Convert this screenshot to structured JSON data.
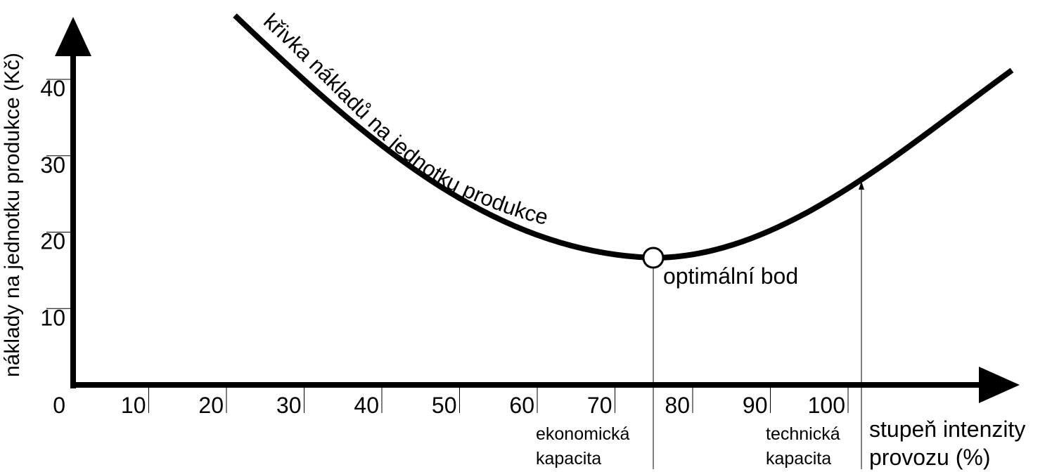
{
  "chart_data": {
    "type": "line",
    "title": "",
    "xlabel": [
      "stupeň intenzity",
      "provozu (%)"
    ],
    "ylabel": "náklady na jednotku produkce (Kč)",
    "x_ticks": [
      0,
      10,
      20,
      30,
      40,
      50,
      60,
      70,
      80,
      90,
      100
    ],
    "x_tick_labels": [
      "0",
      "10",
      "20",
      "30",
      "40",
      "50",
      "60",
      "70",
      "80",
      "90",
      "100"
    ],
    "y_ticks": [
      10,
      20,
      30,
      40
    ],
    "y_tick_labels": [
      "10",
      "20",
      "30",
      "40"
    ],
    "xlim": [
      0,
      120
    ],
    "ylim": [
      0,
      47
    ],
    "grid": false,
    "series": [
      {
        "name": "křivka nákladů na jednotku produkce",
        "x": [
          21,
          25,
          30,
          35,
          40,
          45,
          50,
          55,
          60,
          65,
          70,
          74.5,
          80,
          85,
          90,
          95,
          100,
          105,
          110,
          115,
          120
        ],
        "y": [
          47,
          44.2,
          40.5,
          36.6,
          32.8,
          29.2,
          25.8,
          22.8,
          20.2,
          18.3,
          17.0,
          16.4,
          16.8,
          18.0,
          20.1,
          23.0,
          26.5,
          30.5,
          34.7,
          39.0,
          40.5
        ]
      }
    ],
    "annotations": {
      "curve_label": "křivka nákladů na jednotku produkce",
      "optimal_point": {
        "x": 74.5,
        "y": 16.4,
        "label": "optimální bod"
      },
      "economic_capacity": {
        "x": 74.5,
        "label": [
          "ekonomická",
          "kapacita"
        ]
      },
      "technical_capacity": {
        "x": 101.2,
        "label": [
          "technická",
          "kapacita"
        ]
      }
    }
  }
}
